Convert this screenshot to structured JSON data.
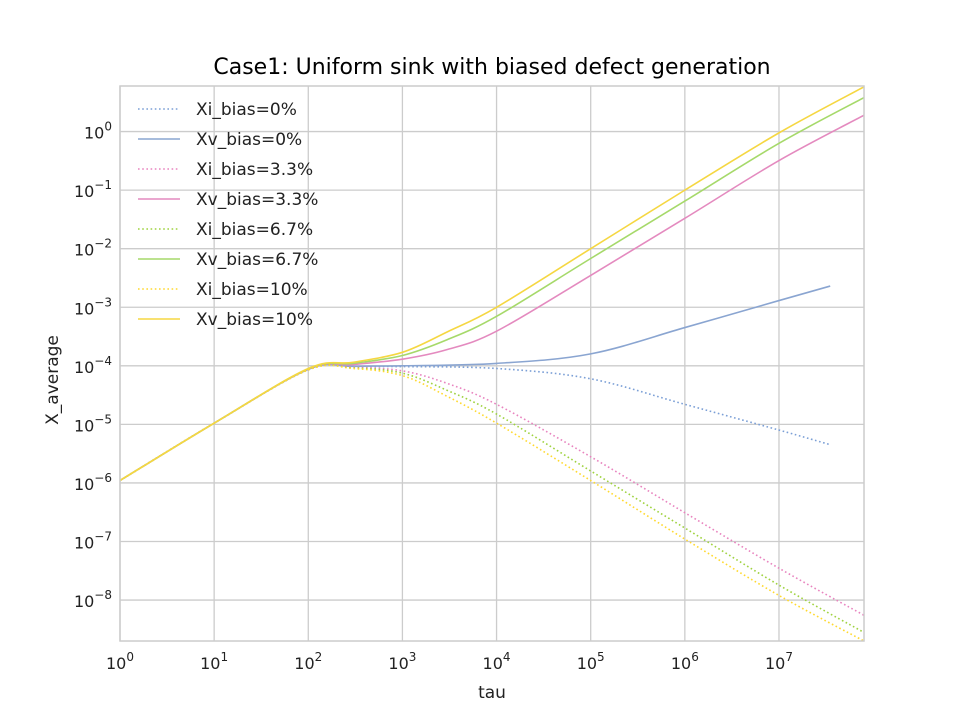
{
  "chart_data": {
    "type": "line",
    "title": "Case1: Uniform sink with biased defect generation",
    "xlabel": "tau",
    "ylabel": "X_average",
    "xscale": "log",
    "yscale": "log",
    "xlim": [
      1,
      80000000
    ],
    "ylim": [
      2e-09,
      6
    ],
    "xticks": [
      {
        "value": 1,
        "base": "10",
        "exp": "0"
      },
      {
        "value": 10,
        "base": "10",
        "exp": "1"
      },
      {
        "value": 100,
        "base": "10",
        "exp": "2"
      },
      {
        "value": 1000,
        "base": "10",
        "exp": "3"
      },
      {
        "value": 10000,
        "base": "10",
        "exp": "4"
      },
      {
        "value": 100000,
        "base": "10",
        "exp": "5"
      },
      {
        "value": 1000000,
        "base": "10",
        "exp": "6"
      },
      {
        "value": 10000000,
        "base": "10",
        "exp": "7"
      }
    ],
    "yticks": [
      {
        "value": 1e-08,
        "base": "10",
        "exp": "−8"
      },
      {
        "value": 1e-07,
        "base": "10",
        "exp": "−7"
      },
      {
        "value": 1e-06,
        "base": "10",
        "exp": "−6"
      },
      {
        "value": 1e-05,
        "base": "10",
        "exp": "−5"
      },
      {
        "value": 0.0001,
        "base": "10",
        "exp": "−4"
      },
      {
        "value": 0.001,
        "base": "10",
        "exp": "−3"
      },
      {
        "value": 0.01,
        "base": "10",
        "exp": "−2"
      },
      {
        "value": 0.1,
        "base": "10",
        "exp": "−1"
      },
      {
        "value": 1,
        "base": "10",
        "exp": "0"
      }
    ],
    "grid": true,
    "legend_position": "top-left",
    "series": [
      {
        "name": "Xi_bias=0%",
        "color": "#7b9fd6",
        "style": "dotted",
        "x": [
          1,
          10,
          100,
          300,
          1000,
          10000,
          100000,
          1000000,
          10000000,
          35000000
        ],
        "y": [
          1.1e-06,
          1.05e-05,
          8.6e-05,
          9.6e-05,
          9.7e-05,
          9e-05,
          6e-05,
          2.2e-05,
          8e-06,
          4.5e-06
        ]
      },
      {
        "name": "Xv_bias=0%",
        "color": "#8aa5d1",
        "style": "solid",
        "x": [
          1,
          10,
          100,
          300,
          1000,
          10000,
          100000,
          1000000,
          10000000,
          35000000
        ],
        "y": [
          1.1e-06,
          1.05e-05,
          8.7e-05,
          9.8e-05,
          0.0001,
          0.00011,
          0.00016,
          0.00045,
          0.0013,
          0.0023
        ]
      },
      {
        "name": "Xi_bias=3.3%",
        "color": "#e884bf",
        "style": "dotted",
        "x": [
          1,
          10,
          100,
          300,
          1000,
          3000,
          10000,
          100000,
          1000000,
          10000000,
          80000000
        ],
        "y": [
          1.1e-06,
          1.05e-05,
          8.6e-05,
          9.4e-05,
          8.2e-05,
          5e-05,
          2.2e-05,
          2.8e-06,
          3.1e-07,
          3.5e-08,
          5.5e-09
        ]
      },
      {
        "name": "Xv_bias=3.3%",
        "color": "#e48abf",
        "style": "solid",
        "x": [
          1,
          10,
          100,
          300,
          1000,
          3000,
          10000,
          100000,
          1000000,
          10000000,
          80000000
        ],
        "y": [
          1.1e-06,
          1.05e-05,
          8.8e-05,
          0.000105,
          0.00013,
          0.00019,
          0.00039,
          0.0035,
          0.033,
          0.32,
          1.9
        ]
      },
      {
        "name": "Xi_bias=6.7%",
        "color": "#9fd23f",
        "style": "dotted",
        "x": [
          1,
          10,
          100,
          300,
          1000,
          3000,
          10000,
          100000,
          1000000,
          10000000,
          80000000
        ],
        "y": [
          1.1e-06,
          1.05e-05,
          8.6e-05,
          9.2e-05,
          7.5e-05,
          3.8e-05,
          1.5e-05,
          1.6e-06,
          1.7e-07,
          1.8e-08,
          2.8e-09
        ]
      },
      {
        "name": "Xv_bias=6.7%",
        "color": "#a6d96a",
        "style": "solid",
        "x": [
          1,
          10,
          100,
          300,
          1000,
          3000,
          10000,
          100000,
          1000000,
          10000000,
          80000000
        ],
        "y": [
          1.1e-06,
          1.05e-05,
          8.9e-05,
          0.00011,
          0.00015,
          0.00028,
          0.0007,
          0.0068,
          0.065,
          0.63,
          3.8
        ]
      },
      {
        "name": "Xi_bias=10%",
        "color": "#ffd92f",
        "style": "dotted",
        "x": [
          1,
          10,
          100,
          300,
          1000,
          3000,
          10000,
          100000,
          1000000,
          10000000,
          80000000
        ],
        "y": [
          1.1e-06,
          1.05e-05,
          8.5e-05,
          9e-05,
          6.8e-05,
          3e-05,
          1.05e-05,
          1.1e-06,
          1.1e-07,
          1.2e-08,
          2e-09
        ]
      },
      {
        "name": "Xv_bias=10%",
        "color": "#f5d742",
        "style": "solid",
        "x": [
          1,
          10,
          100,
          300,
          1000,
          3000,
          10000,
          100000,
          1000000,
          10000000,
          80000000
        ],
        "y": [
          1.1e-06,
          1.05e-05,
          9e-05,
          0.000115,
          0.00017,
          0.00038,
          0.001,
          0.01,
          0.1,
          0.95,
          5.8
        ]
      }
    ]
  }
}
